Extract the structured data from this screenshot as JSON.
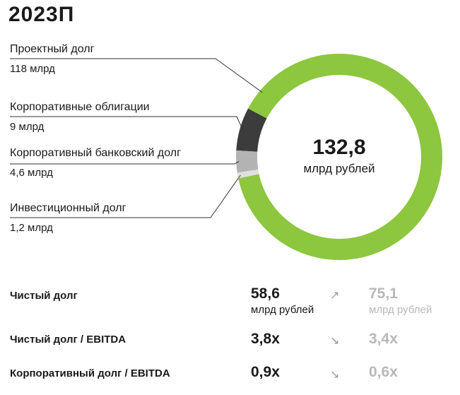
{
  "title": "2023П",
  "chart_data": {
    "type": "pie",
    "title": "2023П",
    "center_value": "132,8",
    "center_unit": "млрд рублей",
    "slices": [
      {
        "name": "Проектный долг",
        "label": "118 млрд",
        "value": 118,
        "color": "#8dc63f"
      },
      {
        "name": "Корпоративные облигации",
        "label": "9 млрд",
        "value": 9,
        "color": "#3c3c3c"
      },
      {
        "name": "Корпоративный банковский долг",
        "label": "4,6 млрд",
        "value": 4.6,
        "color": "#b3b3b3"
      },
      {
        "name": "Инвестиционный долг",
        "label": "1,2 млрд",
        "value": 1.2,
        "color": "#e0e0e0"
      }
    ]
  },
  "metrics": [
    {
      "label": "Чистый долг",
      "current": "58,6",
      "current_unit": "млрд рублей",
      "arrow": "↗",
      "previous": "75,1",
      "previous_unit": "млрд рублей"
    },
    {
      "label": "Чистый долг / EBITDA",
      "current": "3,8x",
      "current_unit": "",
      "arrow": "↘",
      "previous": "3,4x",
      "previous_unit": ""
    },
    {
      "label": "Корпоративный долг / EBITDA",
      "current": "0,9x",
      "current_unit": "",
      "arrow": "↘",
      "previous": "0,6x",
      "previous_unit": ""
    }
  ]
}
